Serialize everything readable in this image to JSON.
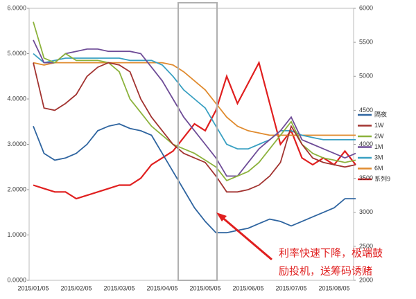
{
  "chart_data": {
    "type": "line",
    "categories": [
      "2015/01/05",
      null,
      null,
      null,
      "2015/02/05",
      null,
      null,
      null,
      "2015/03/05",
      null,
      null,
      null,
      "2015/04/05",
      null,
      null,
      null,
      "2015/05/05",
      null,
      null,
      null,
      "2015/06/05",
      null,
      null,
      null,
      "2015/07/05",
      null,
      null,
      null,
      "2015/08/05",
      null,
      null
    ],
    "series": [
      {
        "name": "隔夜",
        "color": "#2f65a0",
        "values": [
          3.4,
          2.8,
          2.65,
          2.7,
          2.8,
          3.0,
          3.3,
          3.4,
          3.45,
          3.35,
          3.3,
          3.2,
          2.8,
          2.4,
          2.0,
          1.6,
          1.3,
          1.05,
          1.05,
          1.1,
          1.15,
          1.25,
          1.35,
          1.3,
          1.2,
          1.3,
          1.4,
          1.5,
          1.6,
          1.8,
          1.8
        ]
      },
      {
        "name": "1W",
        "color": "#a23330",
        "values": [
          4.8,
          3.8,
          3.75,
          3.9,
          4.1,
          4.5,
          4.7,
          4.8,
          4.75,
          4.6,
          4.0,
          3.6,
          3.3,
          3.0,
          2.8,
          2.7,
          2.6,
          2.3,
          1.95,
          1.95,
          2.0,
          2.1,
          2.3,
          2.6,
          3.4,
          3.0,
          2.7,
          2.6,
          2.55,
          2.5,
          2.55
        ]
      },
      {
        "name": "2W",
        "color": "#8cb23c",
        "values": [
          5.7,
          4.9,
          4.8,
          5.0,
          4.85,
          4.85,
          4.85,
          4.8,
          4.6,
          4.0,
          3.7,
          3.4,
          3.2,
          3.0,
          2.9,
          2.8,
          2.65,
          2.5,
          2.2,
          2.3,
          2.4,
          2.6,
          2.9,
          3.2,
          3.5,
          3.0,
          2.8,
          2.7,
          2.65,
          2.6,
          2.65
        ]
      },
      {
        "name": "1M",
        "color": "#6e4c97",
        "values": [
          5.3,
          4.8,
          4.8,
          5.0,
          5.05,
          5.1,
          5.1,
          5.05,
          5.05,
          5.05,
          5.0,
          4.7,
          4.4,
          4.0,
          3.6,
          3.3,
          3.0,
          2.7,
          2.3,
          2.3,
          2.6,
          2.9,
          3.1,
          3.3,
          3.6,
          3.1,
          3.0,
          2.9,
          2.8,
          2.7,
          2.8
        ]
      },
      {
        "name": "3M",
        "color": "#39a0c2",
        "values": [
          5.0,
          4.8,
          4.85,
          4.9,
          4.9,
          4.9,
          4.9,
          4.9,
          4.9,
          4.85,
          4.85,
          4.85,
          4.75,
          4.5,
          4.2,
          4.0,
          3.8,
          3.4,
          3.0,
          2.9,
          2.9,
          3.0,
          3.1,
          3.3,
          3.3,
          3.2,
          3.15,
          3.1,
          3.1,
          3.1,
          3.1
        ]
      },
      {
        "name": "6M",
        "color": "#e08b2f",
        "values": [
          4.8,
          4.75,
          4.8,
          4.8,
          4.8,
          4.8,
          4.8,
          4.8,
          4.8,
          4.8,
          4.8,
          4.8,
          4.8,
          4.75,
          4.6,
          4.4,
          4.2,
          3.9,
          3.6,
          3.4,
          3.3,
          3.25,
          3.2,
          3.2,
          3.2,
          3.2,
          3.2,
          3.2,
          3.2,
          3.2,
          3.2
        ]
      },
      {
        "name": "系列9",
        "color": "#e01f1f",
        "axis": "y2",
        "values": [
          3400,
          3350,
          3300,
          3300,
          3200,
          3250,
          3300,
          3350,
          3400,
          3400,
          3500,
          3700,
          3800,
          3900,
          4100,
          4300,
          4200,
          4500,
          5000,
          4600,
          4900,
          5200,
          4600,
          4000,
          4200,
          3800,
          3700,
          3800,
          3700,
          3900,
          3700
        ]
      }
    ],
    "ylim": [
      0,
      6
    ],
    "yticks": [
      {
        "value": 0,
        "label": "0.0000"
      },
      {
        "value": 1,
        "label": "1.0000"
      },
      {
        "value": 2,
        "label": "2.0000"
      },
      {
        "value": 3,
        "label": "3.0000"
      },
      {
        "value": 4,
        "label": "4.0000"
      },
      {
        "value": 5,
        "label": "5.0000"
      },
      {
        "value": 6,
        "label": "6.0000"
      }
    ],
    "y2lim": [
      2000,
      6000
    ],
    "y2ticks": [
      2000,
      2500,
      3000,
      3500,
      4000,
      4500,
      5000,
      5500,
      6000
    ],
    "annotations": [
      "利率快速下降，极端鼓",
      "励投机，送筹码诱赌"
    ]
  }
}
